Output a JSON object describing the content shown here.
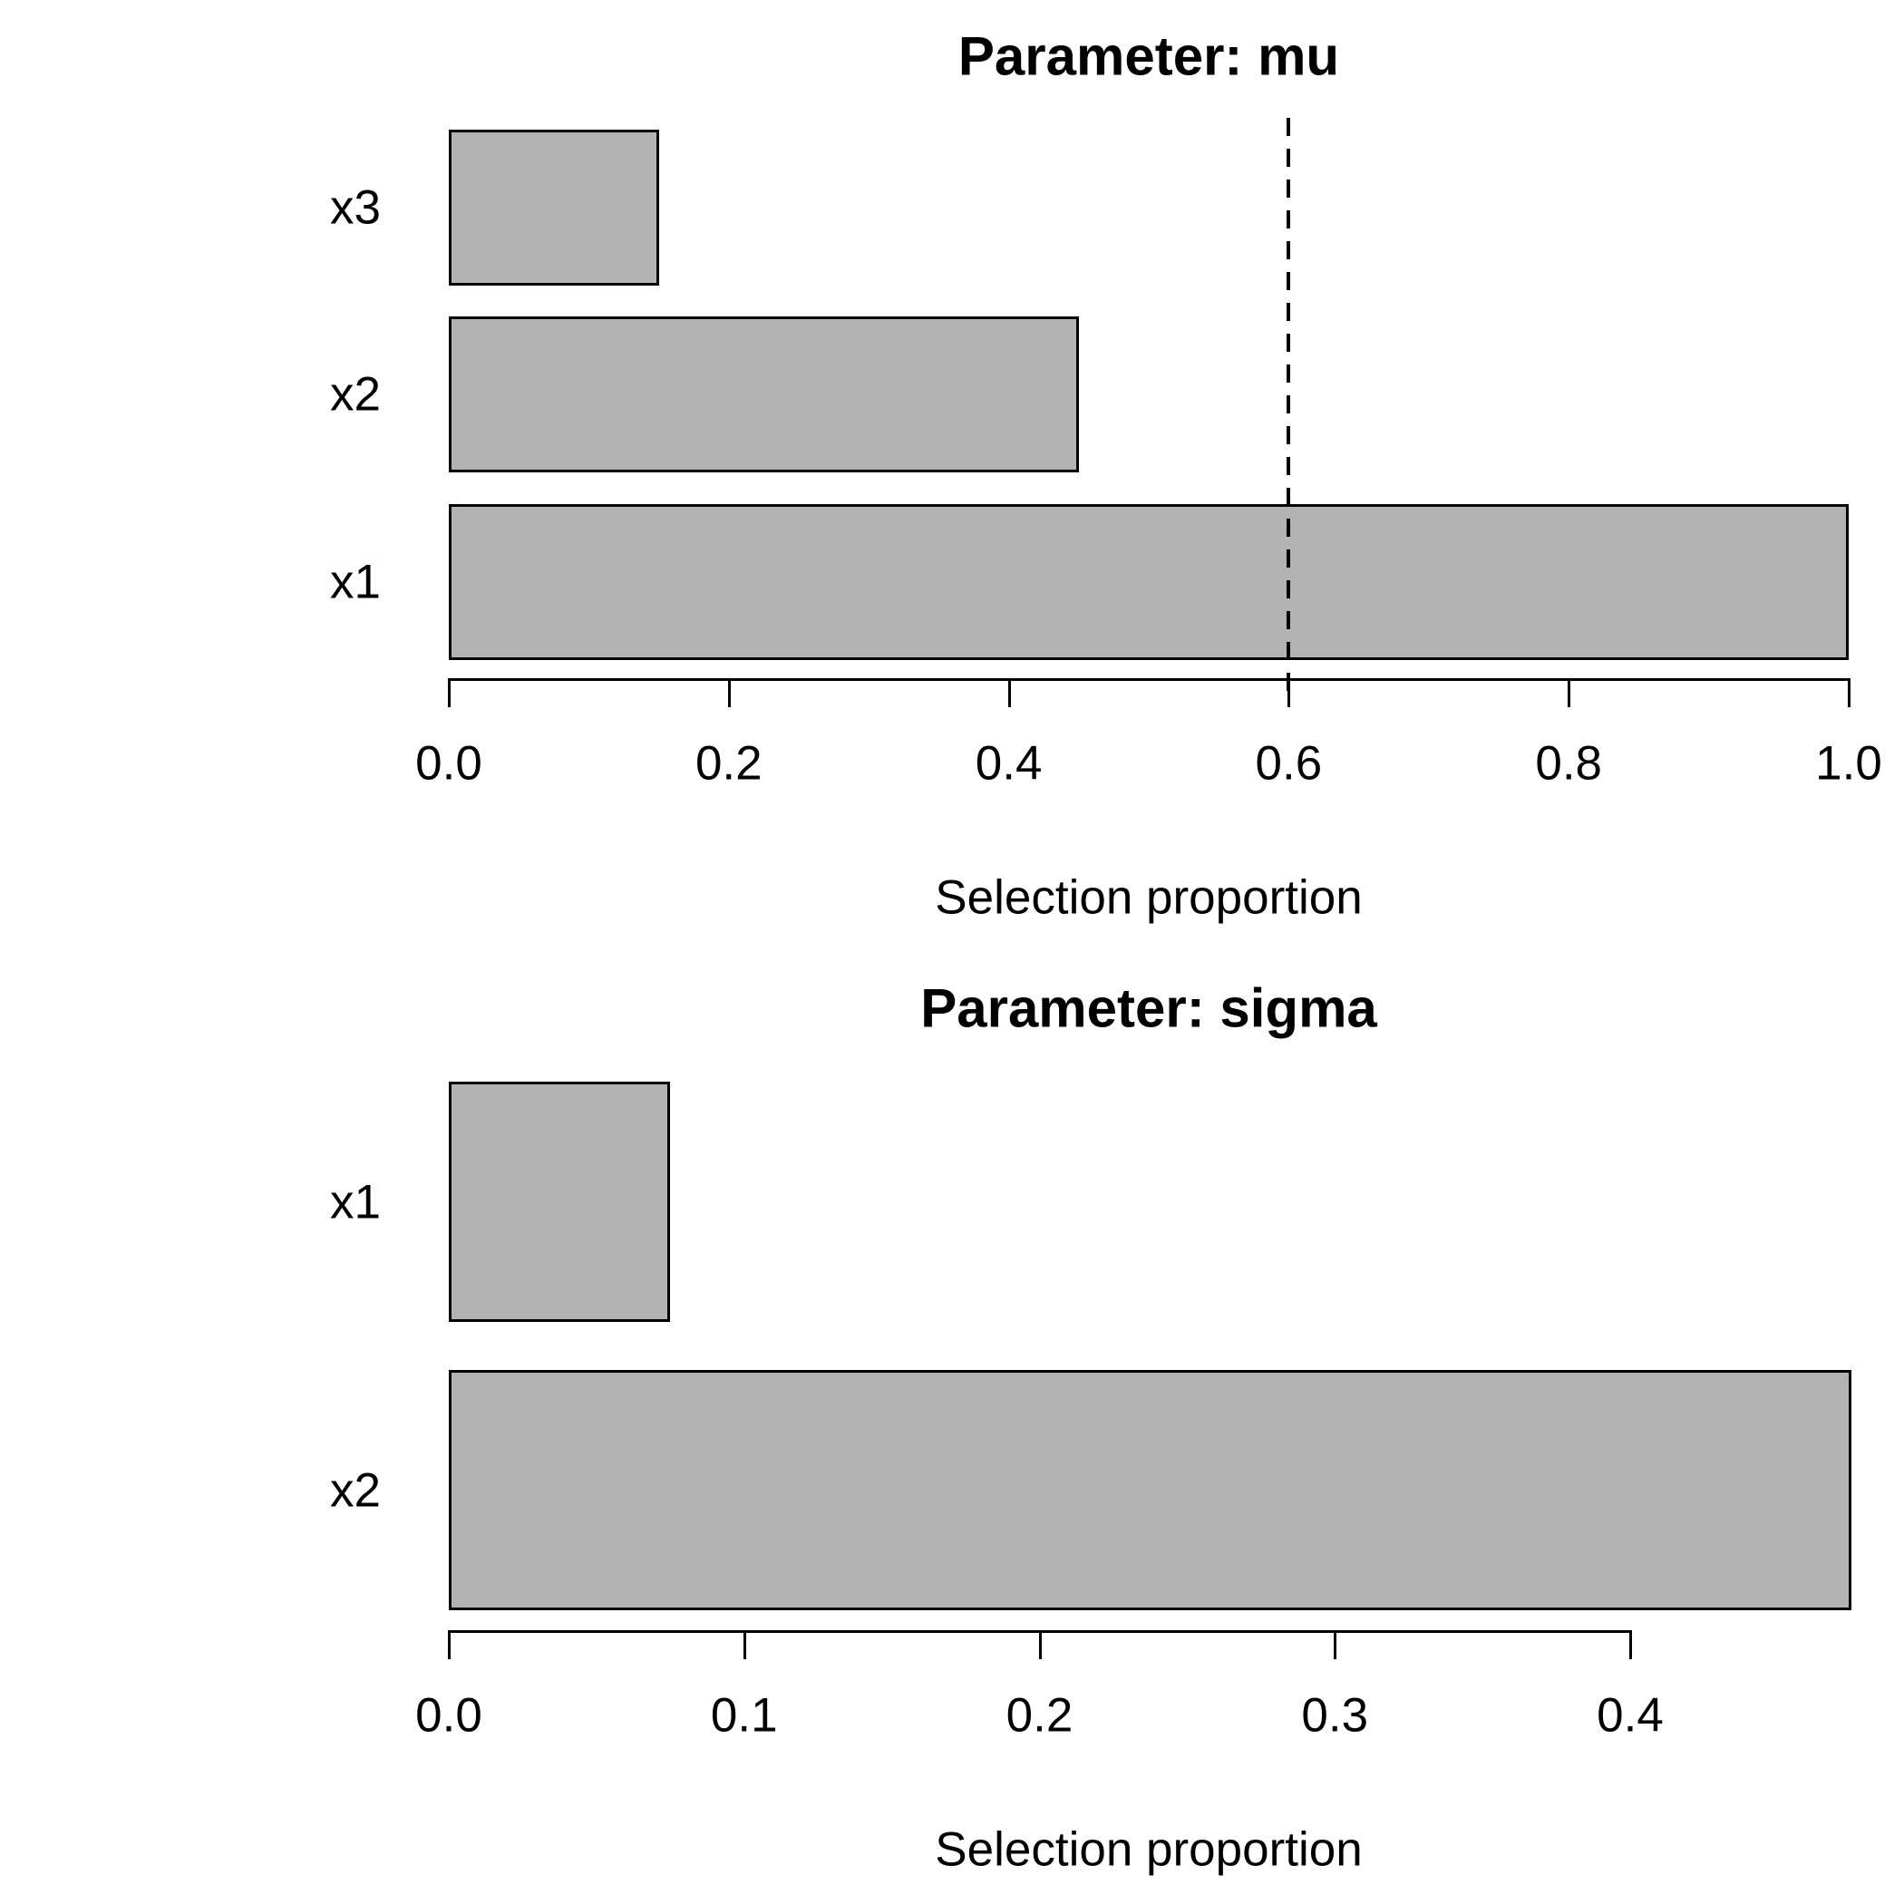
{
  "figure": {
    "background": "#ffffff",
    "text_color": "#000000"
  },
  "chart_data": [
    {
      "type": "bar",
      "orientation": "horizontal",
      "title": "Parameter: mu",
      "xlabel": "Selection proportion",
      "categories_top_to_bottom": [
        "x3",
        "x2",
        "x1"
      ],
      "values": [
        0.15,
        0.45,
        1.0
      ],
      "x_ticks": [
        "0.0",
        "0.2",
        "0.4",
        "0.6",
        "0.8",
        "1.0"
      ],
      "x_tick_values": [
        0,
        0.2,
        0.4,
        0.6,
        0.8,
        1.0
      ],
      "xlim": [
        0,
        1.0
      ],
      "threshold_line": {
        "value": 0.6,
        "style": "dashed",
        "color": "#000000"
      },
      "bar_fill": "#b3b3b3",
      "bar_border": "#000000",
      "grid": false,
      "legend": null
    },
    {
      "type": "bar",
      "orientation": "horizontal",
      "title": "Parameter: sigma",
      "xlabel": "Selection proportion",
      "categories_top_to_bottom": [
        "x1",
        "x2"
      ],
      "values": [
        0.075,
        0.475
      ],
      "x_ticks": [
        "0.0",
        "0.1",
        "0.2",
        "0.3",
        "0.4"
      ],
      "x_tick_values": [
        0,
        0.1,
        0.2,
        0.3,
        0.4
      ],
      "xlim": [
        0,
        0.4
      ],
      "threshold_line": null,
      "bar_fill": "#b3b3b3",
      "bar_border": "#000000",
      "grid": false,
      "legend": null
    }
  ]
}
